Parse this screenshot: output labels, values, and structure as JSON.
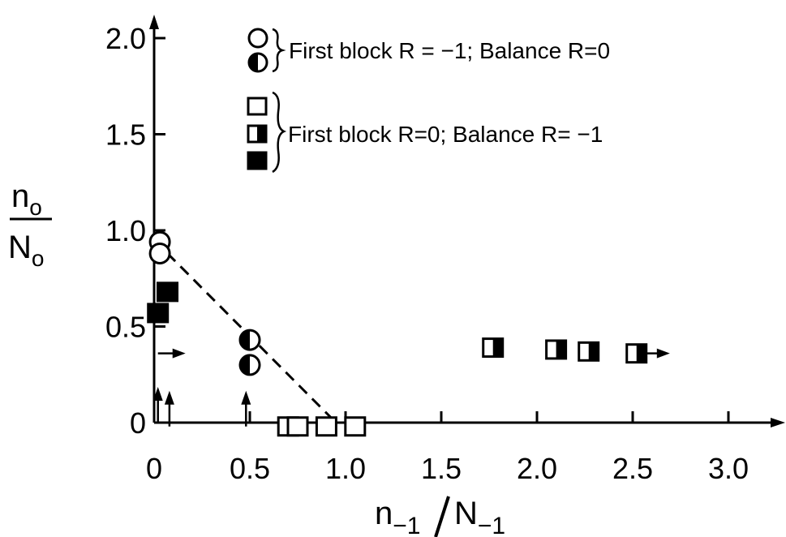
{
  "chart_data": {
    "type": "scatter",
    "xlabel": "n₋₁/N₋₁",
    "ylabel": "nₒ/Nₒ",
    "xlim": [
      0,
      3.2
    ],
    "ylim": [
      0,
      2.1
    ],
    "x_ticks": [
      {
        "value": 0,
        "label": "0"
      },
      {
        "value": 0.5,
        "label": "0.5"
      },
      {
        "value": 1.0,
        "label": "1.0"
      },
      {
        "value": 1.5,
        "label": "1.5"
      },
      {
        "value": 2.0,
        "label": "2.0"
      },
      {
        "value": 2.5,
        "label": "2.5"
      },
      {
        "value": 3.0,
        "label": "3.0"
      }
    ],
    "y_ticks": [
      {
        "value": 0,
        "label": "0"
      },
      {
        "value": 0.5,
        "label": "0.5"
      },
      {
        "value": 1.0,
        "label": "1.0"
      },
      {
        "value": 1.5,
        "label": "1.5"
      },
      {
        "value": 2.0,
        "label": "2.0"
      }
    ],
    "grid": false,
    "legend": [
      {
        "group": "circles",
        "markers": [
          "open-circle",
          "half-filled-circle"
        ],
        "text": "First block R = −1; Balance R=0"
      },
      {
        "group": "squares",
        "markers": [
          "open-square",
          "half-filled-square",
          "filled-square"
        ],
        "text": "First block R=0; Balance R= −1"
      }
    ],
    "series": [
      {
        "marker": "open-circle",
        "points": [
          [
            0.03,
            0.94
          ],
          [
            0.03,
            0.88
          ]
        ]
      },
      {
        "marker": "half-filled-circle",
        "points": [
          [
            0.5,
            0.43
          ],
          [
            0.5,
            0.3
          ]
        ]
      },
      {
        "marker": "filled-square",
        "points": [
          [
            0.07,
            0.68
          ],
          [
            0.02,
            0.57
          ]
        ]
      },
      {
        "marker": "open-square",
        "points": [
          [
            0.7,
            -0.02
          ],
          [
            0.75,
            -0.02
          ],
          [
            0.9,
            -0.02
          ],
          [
            1.05,
            -0.02
          ]
        ]
      },
      {
        "marker": "half-filled-square",
        "points": [
          [
            1.77,
            0.39
          ],
          [
            2.1,
            0.38
          ],
          [
            2.27,
            0.37
          ],
          [
            2.52,
            0.36
          ]
        ]
      }
    ],
    "trend_line": {
      "style": "dashed",
      "from": [
        0,
        0.95
      ],
      "to": [
        0.95,
        0
      ]
    },
    "arrows": [
      {
        "from": [
          0.02,
          0.36
        ],
        "direction": "right"
      },
      {
        "from": [
          0.02,
          0.0
        ],
        "direction": "up"
      },
      {
        "from": [
          0.08,
          -0.02
        ],
        "direction": "up"
      },
      {
        "from": [
          0.48,
          -0.02
        ],
        "direction": "up"
      },
      {
        "from": [
          2.55,
          0.36
        ],
        "direction": "right"
      }
    ]
  }
}
